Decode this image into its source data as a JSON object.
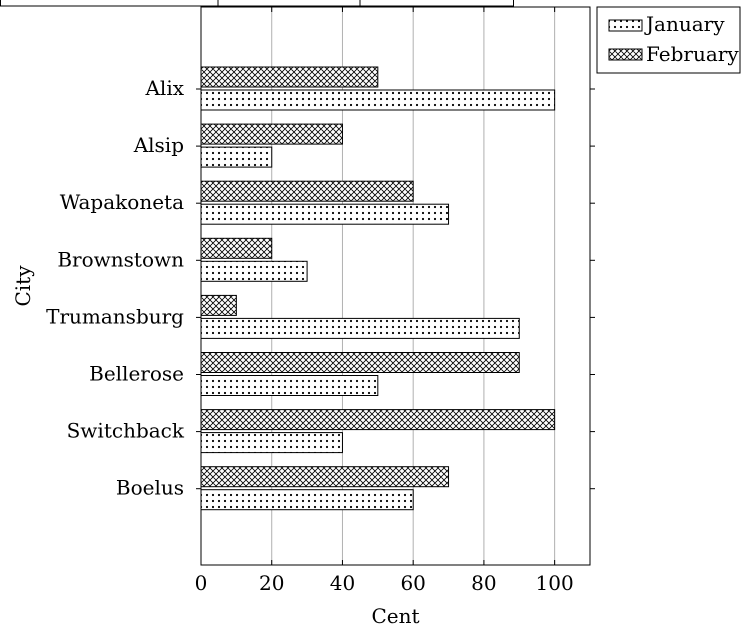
{
  "chart_data": {
    "type": "bar",
    "orientation": "horizontal",
    "title": "",
    "xlabel": "Cent",
    "ylabel": "City",
    "xlim": [
      0,
      110
    ],
    "xticks": [
      0,
      20,
      40,
      60,
      80,
      100
    ],
    "grid": "vertical",
    "legend_position": "outside-top-right",
    "categories": [
      "Alix",
      "Alsip",
      "Wapakoneta",
      "Brownstown",
      "Trumansburg",
      "Bellerose",
      "Switchback",
      "Boelus"
    ],
    "series": [
      {
        "name": "January",
        "pattern": "dots",
        "values": [
          100,
          20,
          70,
          30,
          90,
          50,
          40,
          60
        ]
      },
      {
        "name": "February",
        "pattern": "crosshatch",
        "values": [
          50,
          40,
          60,
          20,
          10,
          90,
          100,
          70
        ]
      }
    ]
  }
}
